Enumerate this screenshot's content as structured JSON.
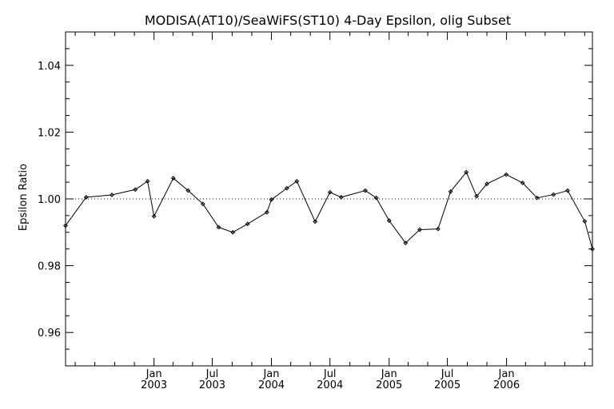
{
  "chart_data": {
    "type": "line",
    "title": "MODISA(AT10)/SeaWiFS(ST10) 4-Day Epsilon, olig Subset",
    "xlabel": "",
    "ylabel": "Epsilon Ratio",
    "ylim": [
      0.95,
      1.05
    ],
    "xlim": [
      "2002-04-01",
      "2006-09-25"
    ],
    "yticks": [
      0.96,
      0.98,
      1.0,
      1.02,
      1.04
    ],
    "ytick_labels": [
      "0.96",
      "0.98",
      "1.00",
      "1.02",
      "1.04"
    ],
    "xticks": [
      {
        "date": "2003-01-01",
        "line1": "Jan",
        "line2": "2003"
      },
      {
        "date": "2003-07-01",
        "line1": "Jul",
        "line2": "2003"
      },
      {
        "date": "2004-01-01",
        "line1": "Jan",
        "line2": "2004"
      },
      {
        "date": "2004-07-01",
        "line1": "Jul",
        "line2": "2004"
      },
      {
        "date": "2005-01-01",
        "line1": "Jan",
        "line2": "2005"
      },
      {
        "date": "2005-07-01",
        "line1": "Jul",
        "line2": "2005"
      },
      {
        "date": "2006-01-01",
        "line1": "Jan",
        "line2": "2006"
      }
    ],
    "reference_line": {
      "y": 1.0,
      "style": "dotted"
    },
    "grid": false,
    "series": [
      {
        "x": [
          "2002-04-01",
          "2002-06-04",
          "2002-08-23",
          "2002-11-04",
          "2002-12-12",
          "2003-01-01",
          "2003-03-02",
          "2003-04-17",
          "2003-06-02",
          "2003-07-21",
          "2003-09-03",
          "2003-10-19",
          "2003-12-18",
          "2004-01-01",
          "2004-02-18",
          "2004-03-20",
          "2004-05-16",
          "2004-07-01",
          "2004-08-05",
          "2004-10-19",
          "2004-11-22",
          "2005-01-01",
          "2005-02-21",
          "2005-04-06",
          "2005-06-02",
          "2005-07-11",
          "2005-08-29",
          "2005-09-30",
          "2005-11-01",
          "2005-12-31",
          "2006-02-20",
          "2006-04-06",
          "2006-05-27",
          "2006-07-10",
          "2006-09-01",
          "2006-09-25"
        ],
        "y": [
          0.992,
          1.0005,
          1.0012,
          1.0028,
          1.0053,
          0.9948,
          1.0062,
          1.0025,
          0.9985,
          0.9915,
          0.99,
          0.9925,
          0.996,
          0.9998,
          1.0032,
          1.0053,
          0.9932,
          1.002,
          1.0005,
          1.0025,
          1.0003,
          0.9935,
          0.9868,
          0.9908,
          0.991,
          1.0022,
          1.008,
          1.0008,
          1.0045,
          1.0073,
          1.0048,
          1.0003,
          1.0013,
          1.0025,
          0.9933,
          0.985
        ],
        "_note_ignore": ""
      }
    ]
  }
}
